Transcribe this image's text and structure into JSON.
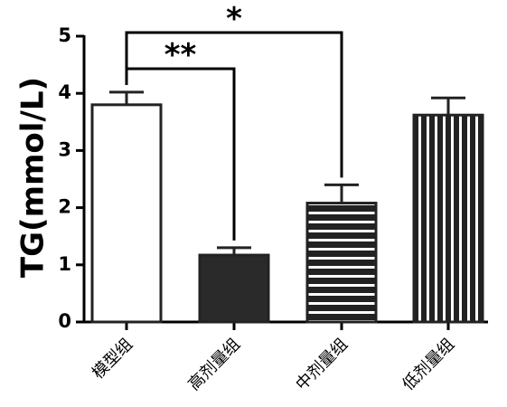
{
  "chart_data": {
    "type": "bar",
    "ylabel": "TG(mmol/L)",
    "ylim": [
      0,
      5
    ],
    "yticks": [
      0,
      1,
      2,
      3,
      4,
      5
    ],
    "categories": [
      "模型组",
      "高剂量组",
      "中剂量组",
      "低剂量组"
    ],
    "values": [
      3.8,
      1.17,
      2.08,
      3.62
    ],
    "errors": [
      0.22,
      0.13,
      0.32,
      0.3
    ],
    "fills": [
      "white",
      "solid-dark",
      "horizontal-stripes",
      "vertical-stripes"
    ],
    "colors": {
      "bar_stroke": "#222222",
      "solid_fill": "#2a2a2a"
    },
    "significance": [
      {
        "from": 0,
        "to": 2,
        "label": "*"
      },
      {
        "from": 0,
        "to": 1,
        "label": "**"
      }
    ]
  }
}
